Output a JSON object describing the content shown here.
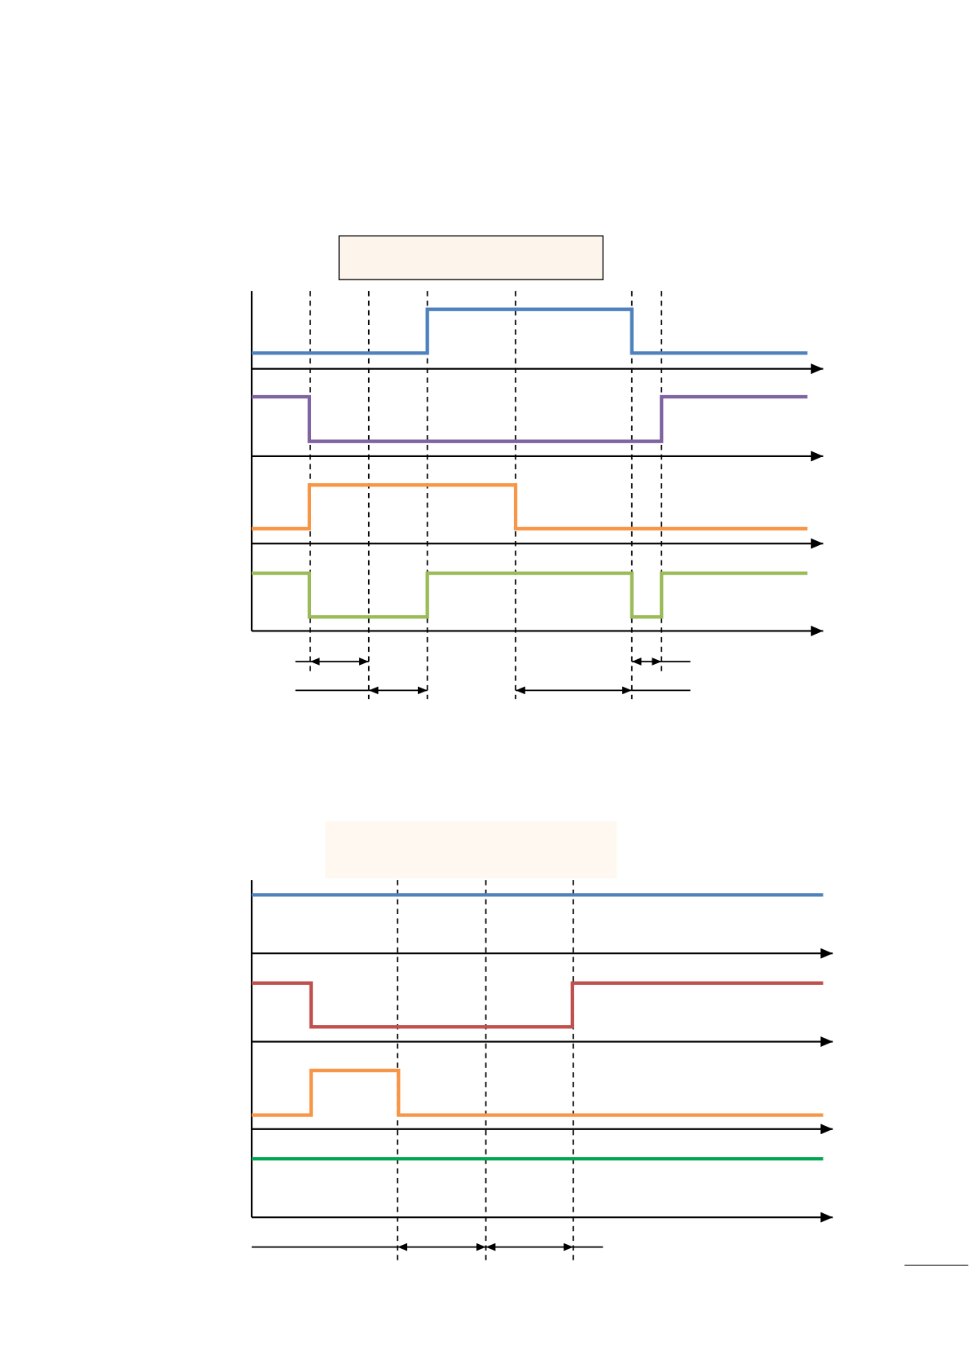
{
  "diagrams": [
    {
      "title_box_fill": "#fdf5ec",
      "signals": [
        {
          "color": "#4f81bd",
          "levels": [
            0,
            0,
            0,
            1,
            1,
            0,
            0
          ]
        },
        {
          "color": "#8064a2",
          "levels": [
            1,
            0,
            0,
            0,
            0,
            0,
            1
          ]
        },
        {
          "color": "#f79646",
          "levels": [
            0,
            1,
            1,
            1,
            0,
            0,
            0
          ]
        },
        {
          "color": "#9bbb59",
          "levels": [
            1,
            0,
            0,
            1,
            1,
            0,
            1
          ]
        }
      ]
    },
    {
      "title_box_fill": "#fef8f1",
      "signals": [
        {
          "color": "#4f81bd",
          "levels": [
            1,
            1,
            1,
            1,
            1
          ]
        },
        {
          "color": "#c0504d",
          "levels": [
            1,
            0,
            0,
            0,
            1
          ]
        },
        {
          "color": "#f79646",
          "levels": [
            0,
            1,
            0,
            0,
            0
          ]
        },
        {
          "color": "#00a651",
          "levels": [
            1,
            1,
            1,
            1,
            1
          ]
        }
      ]
    }
  ]
}
